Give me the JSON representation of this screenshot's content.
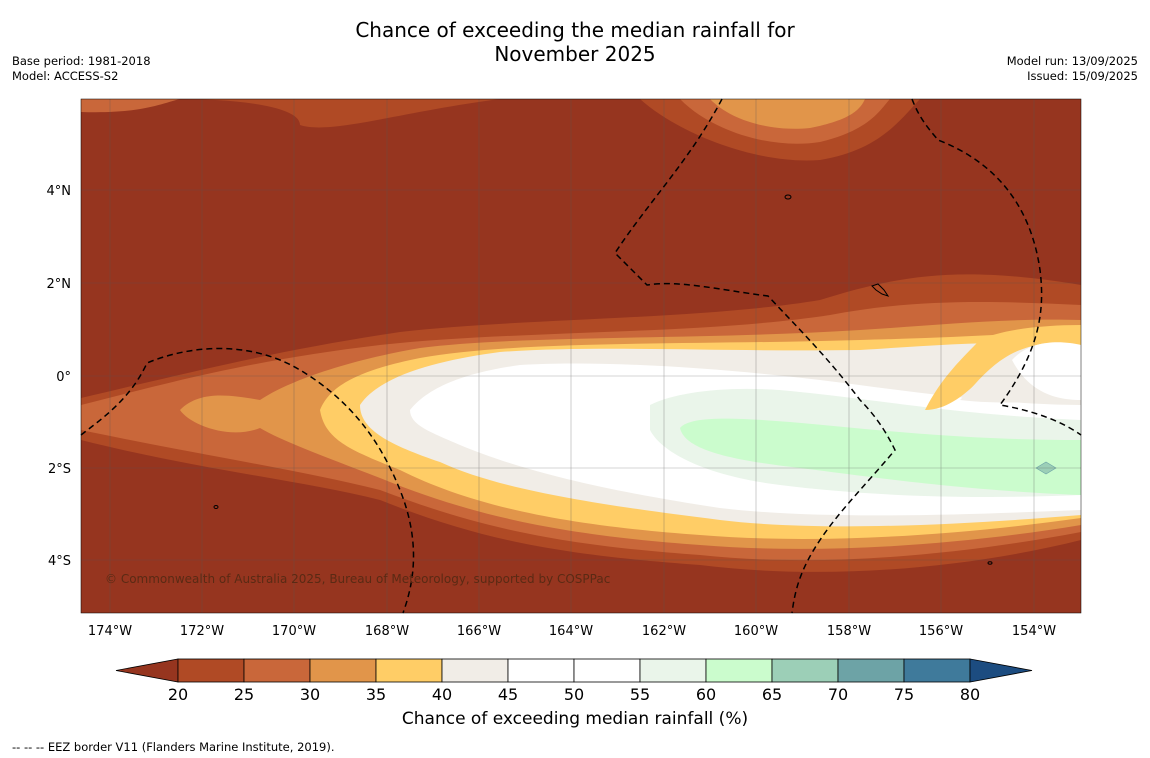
{
  "title_line1": "Chance of exceeding the median rainfall for",
  "title_line2": "November 2025",
  "meta_left": [
    "Base period: 1981-2018",
    "Model: ACCESS-S2"
  ],
  "meta_right": [
    "Model run: 13/09/2025",
    "Issued: 15/09/2025"
  ],
  "copyright": "© Commonwealth of Australia 2025, Bureau of Meteorology, supported by COSPPac",
  "lon_labels": [
    "174°W",
    "172°W",
    "170°W",
    "168°W",
    "166°W",
    "164°W",
    "162°W",
    "160°W",
    "158°W",
    "156°W",
    "154°W"
  ],
  "lat_labels": [
    "4°N",
    "2°N",
    "0°",
    "2°S",
    "4°S"
  ],
  "colorbar": {
    "title": "Chance of exceeding median rainfall (%)",
    "ticks": [
      "20",
      "25",
      "30",
      "35",
      "40",
      "45",
      "50",
      "55",
      "60",
      "65",
      "70",
      "75",
      "80"
    ],
    "colors": [
      "#96351f",
      "#b04a25",
      "#c9673a",
      "#e1954a",
      "#ffcd66",
      "#f1ede7",
      "#ffffff",
      "#ffffff",
      "#eaf5ea",
      "#cbfccd",
      "#9ccfb7",
      "#6da3a6",
      "#3f7a9b",
      "#1c4c80"
    ]
  },
  "footer": "--  --  -- EEZ border V11 (Flanders Marine Institute, 2019)."
}
